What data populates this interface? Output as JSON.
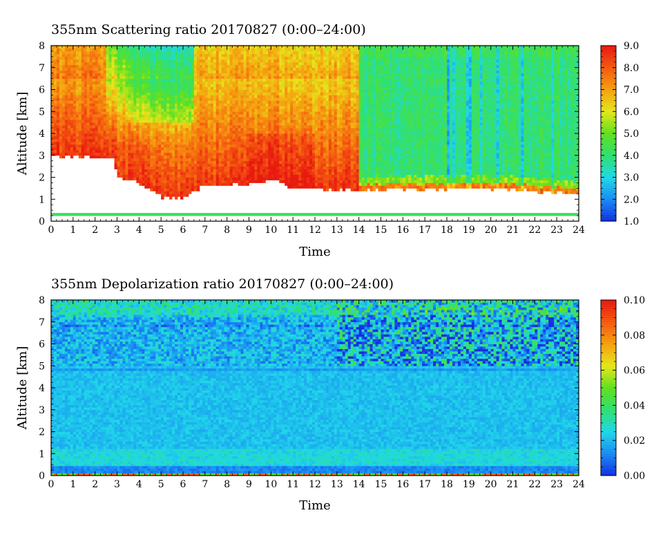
{
  "chart_data": [
    {
      "type": "heatmap",
      "title": "355nm Scattering ratio  20170827 (0:00–24:00)",
      "xlabel": "Time",
      "ylabel": "Altitude [km]",
      "xlim": [
        0,
        24
      ],
      "ylim": [
        0,
        8
      ],
      "x_ticks": [
        "0",
        "1",
        "2",
        "3",
        "4",
        "5",
        "6",
        "7",
        "8",
        "9",
        "10",
        "11",
        "12",
        "13",
        "14",
        "15",
        "16",
        "17",
        "18",
        "19",
        "20",
        "21",
        "22",
        "23",
        "24"
      ],
      "y_ticks": [
        "0",
        "1",
        "2",
        "3",
        "4",
        "5",
        "6",
        "7",
        "8"
      ],
      "colorbar": {
        "range": [
          1.0,
          9.0
        ],
        "tick_labels": [
          "1.0",
          "2.0",
          "3.0",
          "4.0",
          "5.0",
          "6.0",
          "7.0",
          "8.0",
          "9.0"
        ],
        "colors": [
          "#1530e0",
          "#1a8cf5",
          "#20d8e8",
          "#30e070",
          "#60e020",
          "#e6e61a",
          "#f5a010",
          "#f55a10",
          "#e81a10"
        ]
      },
      "description_values": {
        "cloud_base_km": {
          "x": [
            0,
            2.8,
            3.0,
            4.5,
            5.0,
            6.0,
            7.0,
            9.0,
            10.0,
            11.0,
            13.0,
            14.0,
            18.0,
            20.0,
            23.0,
            24.0
          ],
          "y": [
            3.0,
            2.9,
            2.1,
            1.5,
            1.1,
            1.1,
            1.6,
            1.7,
            1.9,
            1.5,
            1.4,
            1.4,
            1.5,
            1.5,
            1.3,
            1.2
          ]
        },
        "typical_value_before_14h": 7.5,
        "typical_value_after_14h": 4.0
      }
    },
    {
      "type": "heatmap",
      "title": "355nm Depolarization ratio  20170827 (0:00–24:00)",
      "xlabel": "Time",
      "ylabel": "Altitude [km]",
      "xlim": [
        0,
        24
      ],
      "ylim": [
        0,
        8
      ],
      "x_ticks": [
        "0",
        "1",
        "2",
        "3",
        "4",
        "5",
        "6",
        "7",
        "8",
        "9",
        "10",
        "11",
        "12",
        "13",
        "14",
        "15",
        "16",
        "17",
        "18",
        "19",
        "20",
        "21",
        "22",
        "23",
        "24"
      ],
      "y_ticks": [
        "0",
        "1",
        "2",
        "3",
        "4",
        "5",
        "6",
        "7",
        "8"
      ],
      "colorbar": {
        "range": [
          0.0,
          0.1
        ],
        "tick_labels": [
          "0.00",
          "0.02",
          "0.04",
          "0.06",
          "0.08",
          "0.10"
        ],
        "colors": [
          "#1530e0",
          "#1a8cf5",
          "#20d8e8",
          "#30e070",
          "#60e020",
          "#e6e61a",
          "#f5a010",
          "#f55a10",
          "#e81a10"
        ]
      },
      "description_values": {
        "typical_value": 0.02,
        "upper_noise_max": 0.08
      }
    }
  ]
}
